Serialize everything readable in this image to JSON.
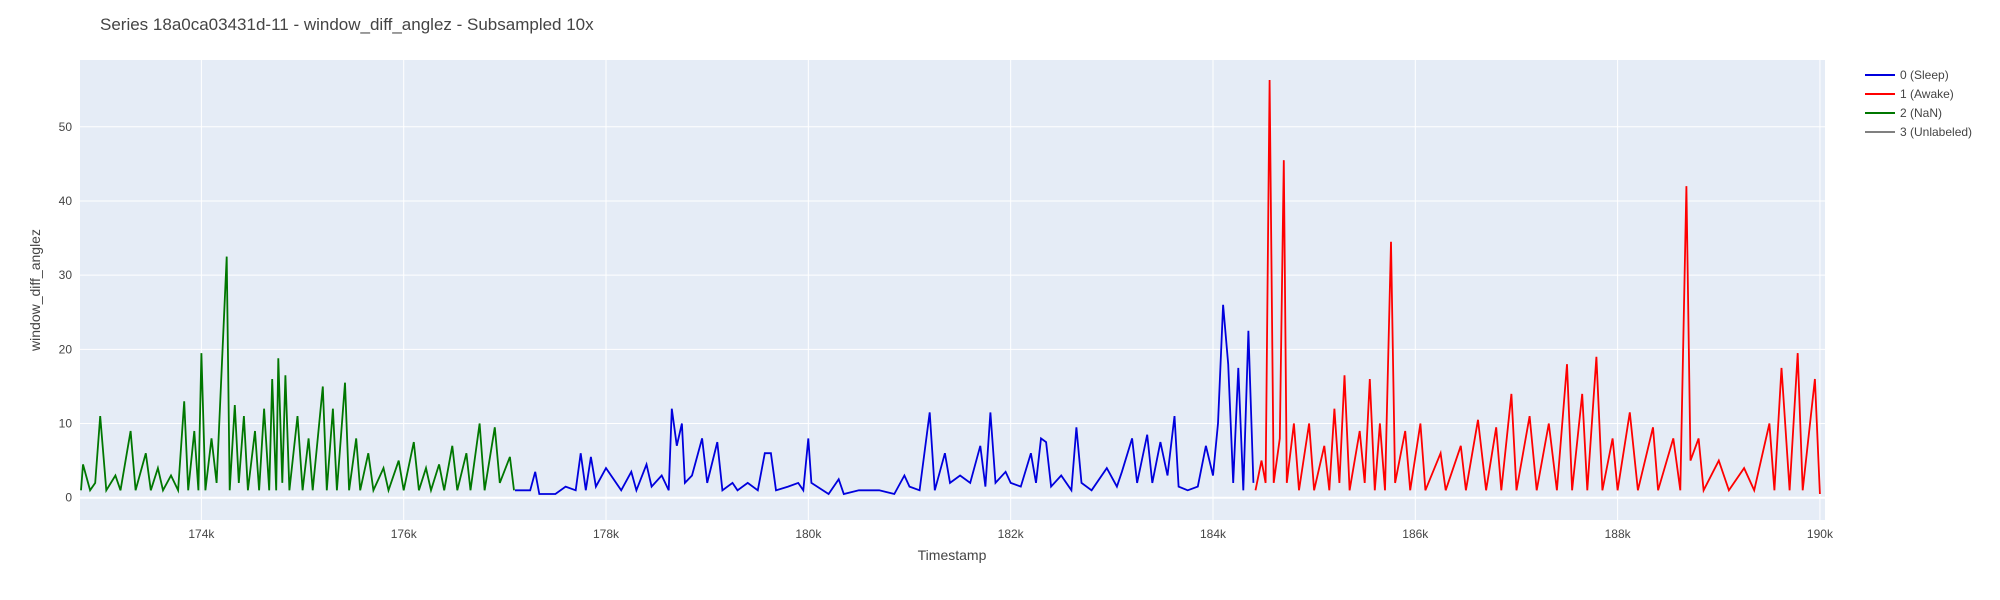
{
  "chart_data": {
    "type": "line",
    "title": "Series 18a0ca03431d-11 - window_diff_anglez - Subsampled 10x",
    "xlabel": "Timestamp",
    "ylabel": "window_diff_anglez",
    "xlim": [
      172800,
      190050
    ],
    "ylim": [
      -3,
      59
    ],
    "x_ticks": [
      {
        "value": 174000,
        "label": "174k"
      },
      {
        "value": 176000,
        "label": "176k"
      },
      {
        "value": 178000,
        "label": "178k"
      },
      {
        "value": 180000,
        "label": "180k"
      },
      {
        "value": 182000,
        "label": "182k"
      },
      {
        "value": 184000,
        "label": "184k"
      },
      {
        "value": 186000,
        "label": "186k"
      },
      {
        "value": 188000,
        "label": "188k"
      },
      {
        "value": 190000,
        "label": "190k"
      }
    ],
    "y_ticks": [
      {
        "value": 0,
        "label": "0"
      },
      {
        "value": 10,
        "label": "10"
      },
      {
        "value": 20,
        "label": "20"
      },
      {
        "value": 30,
        "label": "30"
      },
      {
        "value": 40,
        "label": "40"
      },
      {
        "value": 50,
        "label": "50"
      }
    ],
    "grid": true,
    "legend_position": "top-right",
    "colors": {
      "plot_bg": "#e5ecf6",
      "grid": "#ffffff",
      "sleep": "#0000dd",
      "awake": "#ff0000",
      "nan": "#007700",
      "unlabeled": "#808080"
    },
    "series": [
      {
        "name": "0 (Sleep)",
        "color": "#0000dd"
      },
      {
        "name": "1 (Awake)",
        "color": "#ff0000"
      },
      {
        "name": "2 (NaN)",
        "color": "#007700"
      },
      {
        "name": "3 (Unlabeled)",
        "color": "#808080"
      }
    ],
    "peaks": {
      "nan": [
        [
          172810,
          1
        ],
        [
          172830,
          4.5
        ],
        [
          172900,
          1
        ],
        [
          172950,
          2
        ],
        [
          173000,
          11
        ],
        [
          173060,
          1
        ],
        [
          173150,
          3
        ],
        [
          173200,
          1
        ],
        [
          173300,
          9
        ],
        [
          173350,
          1
        ],
        [
          173450,
          6
        ],
        [
          173500,
          1
        ],
        [
          173570,
          4
        ],
        [
          173620,
          1
        ],
        [
          173700,
          3
        ],
        [
          173770,
          1
        ],
        [
          173830,
          13
        ],
        [
          173870,
          1
        ],
        [
          173930,
          9
        ],
        [
          173970,
          1
        ],
        [
          174000,
          19.5
        ],
        [
          174040,
          1
        ],
        [
          174100,
          8
        ],
        [
          174150,
          2
        ],
        [
          174250,
          32.5
        ],
        [
          174280,
          1
        ],
        [
          174330,
          12.5
        ],
        [
          174370,
          2
        ],
        [
          174420,
          11
        ],
        [
          174460,
          1
        ],
        [
          174530,
          9
        ],
        [
          174570,
          1
        ],
        [
          174620,
          12
        ],
        [
          174670,
          1
        ],
        [
          174700,
          16
        ],
        [
          174740,
          1
        ],
        [
          174760,
          18.8
        ],
        [
          174800,
          2
        ],
        [
          174830,
          16.5
        ],
        [
          174870,
          1
        ],
        [
          174950,
          11
        ],
        [
          175000,
          1
        ],
        [
          175060,
          8
        ],
        [
          175100,
          1
        ],
        [
          175200,
          15
        ],
        [
          175240,
          1
        ],
        [
          175300,
          12
        ],
        [
          175340,
          1
        ],
        [
          175420,
          15.5
        ],
        [
          175460,
          1
        ],
        [
          175530,
          8
        ],
        [
          175570,
          1
        ],
        [
          175650,
          6
        ],
        [
          175700,
          1
        ],
        [
          175800,
          4
        ],
        [
          175850,
          1
        ],
        [
          175950,
          5
        ],
        [
          176000,
          1
        ],
        [
          176100,
          7.5
        ],
        [
          176150,
          1
        ],
        [
          176220,
          4
        ],
        [
          176270,
          1
        ],
        [
          176350,
          4.5
        ],
        [
          176400,
          1
        ],
        [
          176480,
          7
        ],
        [
          176530,
          1
        ],
        [
          176620,
          6
        ],
        [
          176660,
          1
        ],
        [
          176750,
          10
        ],
        [
          176800,
          1
        ],
        [
          176900,
          9.5
        ],
        [
          176950,
          2
        ],
        [
          177050,
          5.5
        ],
        [
          177090,
          1
        ]
      ],
      "sleep": [
        [
          177100,
          1
        ],
        [
          177250,
          1
        ],
        [
          177300,
          3.5
        ],
        [
          177340,
          0.5
        ],
        [
          177500,
          0.5
        ],
        [
          177600,
          1.5
        ],
        [
          177700,
          1
        ],
        [
          177750,
          6
        ],
        [
          177800,
          1
        ],
        [
          177850,
          5.5
        ],
        [
          177900,
          1.5
        ],
        [
          178000,
          4
        ],
        [
          178150,
          1
        ],
        [
          178250,
          3.5
        ],
        [
          178300,
          1
        ],
        [
          178400,
          4.5
        ],
        [
          178450,
          1.5
        ],
        [
          178550,
          3
        ],
        [
          178620,
          1
        ],
        [
          178650,
          12
        ],
        [
          178700,
          7
        ],
        [
          178750,
          10
        ],
        [
          178780,
          2
        ],
        [
          178850,
          3
        ],
        [
          178950,
          8
        ],
        [
          179000,
          2
        ],
        [
          179100,
          7.5
        ],
        [
          179150,
          1
        ],
        [
          179250,
          2
        ],
        [
          179300,
          1
        ],
        [
          179400,
          2
        ],
        [
          179500,
          1
        ],
        [
          179570,
          6
        ],
        [
          179630,
          6
        ],
        [
          179680,
          1
        ],
        [
          179800,
          1.5
        ],
        [
          179900,
          2
        ],
        [
          179950,
          1
        ],
        [
          180000,
          8
        ],
        [
          180030,
          2
        ],
        [
          180200,
          0.5
        ],
        [
          180300,
          2.5
        ],
        [
          180350,
          0.5
        ],
        [
          180500,
          1
        ],
        [
          180700,
          1
        ],
        [
          180850,
          0.5
        ],
        [
          180950,
          3
        ],
        [
          181000,
          1.5
        ],
        [
          181100,
          1
        ],
        [
          181200,
          11.5
        ],
        [
          181250,
          1
        ],
        [
          181350,
          6
        ],
        [
          181400,
          2
        ],
        [
          181500,
          3
        ],
        [
          181600,
          2
        ],
        [
          181700,
          7
        ],
        [
          181750,
          1.5
        ],
        [
          181800,
          11.5
        ],
        [
          181850,
          2
        ],
        [
          181950,
          3.5
        ],
        [
          182000,
          2
        ],
        [
          182100,
          1.5
        ],
        [
          182200,
          6
        ],
        [
          182250,
          2
        ],
        [
          182300,
          8
        ],
        [
          182350,
          7.5
        ],
        [
          182400,
          1.5
        ],
        [
          182500,
          3
        ],
        [
          182600,
          1
        ],
        [
          182650,
          9.5
        ],
        [
          182700,
          2
        ],
        [
          182800,
          1
        ],
        [
          182950,
          4
        ],
        [
          183050,
          1.5
        ],
        [
          183100,
          3.5
        ],
        [
          183200,
          8
        ],
        [
          183250,
          2
        ],
        [
          183350,
          8.5
        ],
        [
          183400,
          2
        ],
        [
          183480,
          7.5
        ],
        [
          183550,
          3
        ],
        [
          183620,
          11
        ],
        [
          183660,
          1.5
        ],
        [
          183750,
          1
        ],
        [
          183850,
          1.5
        ],
        [
          183930,
          7
        ],
        [
          184000,
          3
        ],
        [
          184050,
          10
        ],
        [
          184100,
          26
        ],
        [
          184150,
          18
        ],
        [
          184200,
          2
        ],
        [
          184250,
          17.5
        ],
        [
          184300,
          1
        ],
        [
          184350,
          22.5
        ],
        [
          184400,
          2
        ]
      ],
      "awake": [
        [
          184420,
          1
        ],
        [
          184480,
          5
        ],
        [
          184520,
          2
        ],
        [
          184560,
          56.3
        ],
        [
          184600,
          2
        ],
        [
          184660,
          8
        ],
        [
          184700,
          45.5
        ],
        [
          184730,
          2
        ],
        [
          184800,
          10
        ],
        [
          184850,
          1
        ],
        [
          184950,
          10
        ],
        [
          185000,
          1
        ],
        [
          185100,
          7
        ],
        [
          185150,
          1
        ],
        [
          185200,
          12
        ],
        [
          185250,
          2
        ],
        [
          185300,
          16.5
        ],
        [
          185350,
          1
        ],
        [
          185450,
          9
        ],
        [
          185500,
          2
        ],
        [
          185550,
          16
        ],
        [
          185600,
          1
        ],
        [
          185650,
          10
        ],
        [
          185700,
          1
        ],
        [
          185760,
          34.5
        ],
        [
          185800,
          2
        ],
        [
          185900,
          9
        ],
        [
          185950,
          1
        ],
        [
          186050,
          10
        ],
        [
          186100,
          1
        ],
        [
          186250,
          6
        ],
        [
          186300,
          1
        ],
        [
          186450,
          7
        ],
        [
          186500,
          1
        ],
        [
          186620,
          10.5
        ],
        [
          186700,
          1
        ],
        [
          186800,
          9.5
        ],
        [
          186850,
          1
        ],
        [
          186950,
          14
        ],
        [
          187000,
          1
        ],
        [
          187130,
          11
        ],
        [
          187200,
          1
        ],
        [
          187320,
          10
        ],
        [
          187400,
          1
        ],
        [
          187500,
          18
        ],
        [
          187550,
          1
        ],
        [
          187650,
          14
        ],
        [
          187700,
          1
        ],
        [
          187790,
          19
        ],
        [
          187850,
          1
        ],
        [
          187950,
          8
        ],
        [
          188000,
          1
        ],
        [
          188120,
          11.5
        ],
        [
          188200,
          1
        ],
        [
          188350,
          9.5
        ],
        [
          188400,
          1
        ],
        [
          188550,
          8
        ],
        [
          188620,
          1
        ],
        [
          188680,
          42
        ],
        [
          188720,
          5
        ],
        [
          188800,
          8
        ],
        [
          188850,
          1
        ],
        [
          189000,
          5
        ],
        [
          189100,
          1
        ],
        [
          189250,
          4
        ],
        [
          189350,
          1
        ],
        [
          189500,
          10
        ],
        [
          189550,
          1
        ],
        [
          189620,
          17.5
        ],
        [
          189700,
          1
        ],
        [
          189780,
          19.5
        ],
        [
          189830,
          1
        ],
        [
          189950,
          16
        ],
        [
          190000,
          0.5
        ]
      ]
    },
    "unlabeled_values": []
  }
}
